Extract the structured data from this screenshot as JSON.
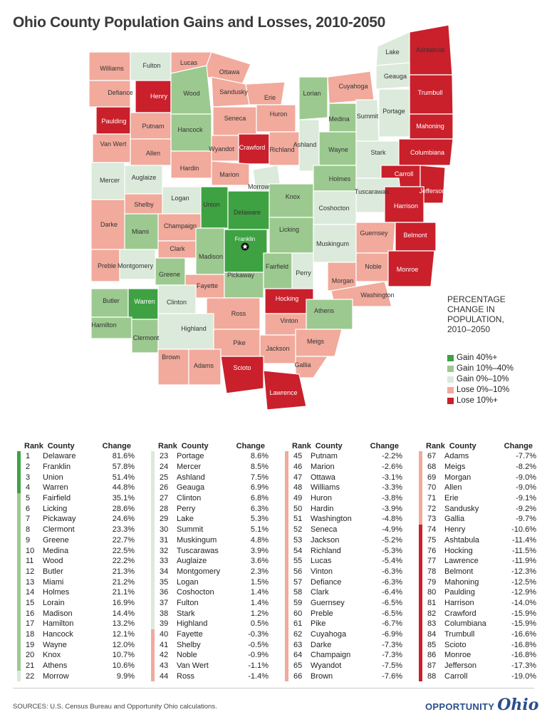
{
  "title": "Ohio County Population Gains and Losses, 2010-2050",
  "colors": {
    "gain40": "#3ea243",
    "gain10": "#9cc98f",
    "gain0": "#dbeadb",
    "lose0": "#f1aa9c",
    "lose10": "#c9202b",
    "border": "#ffffff"
  },
  "legend": {
    "title_lines": [
      "PERCENTAGE",
      "CHANGE IN",
      "POPULATION,",
      "2010–2050"
    ],
    "items": [
      {
        "label": "Gain 40%+",
        "cls": "gain40"
      },
      {
        "label": "Gain 10%–40%",
        "cls": "gain10"
      },
      {
        "label": "Gain 0%–10%",
        "cls": "gain0"
      },
      {
        "label": "Lose 0%–10%",
        "cls": "lose0"
      },
      {
        "label": "Lose 10%+",
        "cls": "lose10"
      }
    ]
  },
  "capital_icon": "star-icon",
  "map_counties": [
    {
      "name": "Williams",
      "cls": "lose0"
    },
    {
      "name": "Fulton",
      "cls": "gain0"
    },
    {
      "name": "Lucas",
      "cls": "lose0"
    },
    {
      "name": "Ottawa",
      "cls": "lose0"
    },
    {
      "name": "Lake",
      "cls": "gain0"
    },
    {
      "name": "Ashtabula",
      "cls": "lose10"
    },
    {
      "name": "Defiance",
      "cls": "lose0"
    },
    {
      "name": "Henry",
      "cls": "lose10"
    },
    {
      "name": "Wood",
      "cls": "gain10"
    },
    {
      "name": "Sandusky",
      "cls": "lose0"
    },
    {
      "name": "Erie",
      "cls": "lose0"
    },
    {
      "name": "Lorian",
      "cls": "gain10"
    },
    {
      "name": "Cuyahoga",
      "cls": "lose0"
    },
    {
      "name": "Geauga",
      "cls": "gain0"
    },
    {
      "name": "Trumbull",
      "cls": "lose10"
    },
    {
      "name": "Paulding",
      "cls": "lose10"
    },
    {
      "name": "Putnam",
      "cls": "lose0"
    },
    {
      "name": "Hancock",
      "cls": "gain10"
    },
    {
      "name": "Seneca",
      "cls": "lose0"
    },
    {
      "name": "Huron",
      "cls": "lose0"
    },
    {
      "name": "Medina",
      "cls": "gain10"
    },
    {
      "name": "Summit",
      "cls": "gain0"
    },
    {
      "name": "Portage",
      "cls": "gain0"
    },
    {
      "name": "Mahoning",
      "cls": "lose10"
    },
    {
      "name": "Van Wert",
      "cls": "lose0"
    },
    {
      "name": "Allen",
      "cls": "lose0"
    },
    {
      "name": "Wyandot",
      "cls": "lose0"
    },
    {
      "name": "Crawford",
      "cls": "lose10"
    },
    {
      "name": "Richland",
      "cls": "lose0"
    },
    {
      "name": "Ashland",
      "cls": "gain0"
    },
    {
      "name": "Wayne",
      "cls": "gain10"
    },
    {
      "name": "Stark",
      "cls": "gain0"
    },
    {
      "name": "Columbiana",
      "cls": "lose10"
    },
    {
      "name": "Mercer",
      "cls": "gain0"
    },
    {
      "name": "Auglaize",
      "cls": "gain0"
    },
    {
      "name": "Hardin",
      "cls": "lose0"
    },
    {
      "name": "Marion",
      "cls": "lose0"
    },
    {
      "name": "Morrow",
      "cls": "gain0"
    },
    {
      "name": "Holmes",
      "cls": "gain10"
    },
    {
      "name": "Carroll",
      "cls": "lose10"
    },
    {
      "name": "Tuscarawas",
      "cls": "gain0"
    },
    {
      "name": "Jefferson",
      "cls": "lose10"
    },
    {
      "name": "Shelby",
      "cls": "lose0"
    },
    {
      "name": "Logan",
      "cls": "gain0"
    },
    {
      "name": "Union",
      "cls": "gain40"
    },
    {
      "name": "Delaware",
      "cls": "gain40"
    },
    {
      "name": "Knox",
      "cls": "gain10"
    },
    {
      "name": "Coshocton",
      "cls": "gain0"
    },
    {
      "name": "Harrison",
      "cls": "lose10"
    },
    {
      "name": "Darke",
      "cls": "lose0"
    },
    {
      "name": "Miami",
      "cls": "gain10"
    },
    {
      "name": "Champaign",
      "cls": "lose0"
    },
    {
      "name": "Franklin",
      "cls": "gain40"
    },
    {
      "name": "Licking",
      "cls": "gain10"
    },
    {
      "name": "Muskingum",
      "cls": "gain0"
    },
    {
      "name": "Guernsey",
      "cls": "lose0"
    },
    {
      "name": "Belmont",
      "cls": "lose10"
    },
    {
      "name": "Clark",
      "cls": "lose0"
    },
    {
      "name": "Madison",
      "cls": "gain10"
    },
    {
      "name": "Preble",
      "cls": "lose0"
    },
    {
      "name": "Montgomery",
      "cls": "gain0"
    },
    {
      "name": "Greene",
      "cls": "gain10"
    },
    {
      "name": "Fayette",
      "cls": "lose0"
    },
    {
      "name": "Pickaway",
      "cls": "gain10"
    },
    {
      "name": "Fairfield",
      "cls": "gain10"
    },
    {
      "name": "Perry",
      "cls": "gain0"
    },
    {
      "name": "Morgan",
      "cls": "lose0"
    },
    {
      "name": "Noble",
      "cls": "lose0"
    },
    {
      "name": "Monroe",
      "cls": "lose10"
    },
    {
      "name": "Washington",
      "cls": "lose0"
    },
    {
      "name": "Butler",
      "cls": "gain10"
    },
    {
      "name": "Warren",
      "cls": "gain40"
    },
    {
      "name": "Clinton",
      "cls": "gain0"
    },
    {
      "name": "Ross",
      "cls": "lose0"
    },
    {
      "name": "Hocking",
      "cls": "lose10"
    },
    {
      "name": "Athens",
      "cls": "gain10"
    },
    {
      "name": "Vinton",
      "cls": "lose0"
    },
    {
      "name": "Hamilton",
      "cls": "gain10"
    },
    {
      "name": "Clermont",
      "cls": "gain10"
    },
    {
      "name": "Highland",
      "cls": "gain0"
    },
    {
      "name": "Pike",
      "cls": "lose0"
    },
    {
      "name": "Jackson",
      "cls": "lose0"
    },
    {
      "name": "Meigs",
      "cls": "lose0"
    },
    {
      "name": "Brown",
      "cls": "lose0"
    },
    {
      "name": "Adams",
      "cls": "lose0"
    },
    {
      "name": "Scioto",
      "cls": "lose10"
    },
    {
      "name": "Gallia",
      "cls": "lose0"
    },
    {
      "name": "Lawrence",
      "cls": "lose10"
    }
  ],
  "table": {
    "headers": {
      "rank": "Rank",
      "county": "County",
      "change": "Change"
    },
    "rows": [
      {
        "rank": "1",
        "county": "Delaware",
        "change": "81.6%",
        "cls": "gain40"
      },
      {
        "rank": "2",
        "county": "Franklin",
        "change": "57.8%",
        "cls": "gain40"
      },
      {
        "rank": "3",
        "county": "Union",
        "change": "51.4%",
        "cls": "gain40"
      },
      {
        "rank": "4",
        "county": "Warren",
        "change": "44.8%",
        "cls": "gain40"
      },
      {
        "rank": "5",
        "county": "Fairfield",
        "change": "35.1%",
        "cls": "gain10"
      },
      {
        "rank": "6",
        "county": "Licking",
        "change": "28.6%",
        "cls": "gain10"
      },
      {
        "rank": "7",
        "county": "Pickaway",
        "change": "24.6%",
        "cls": "gain10"
      },
      {
        "rank": "8",
        "county": "Clermont",
        "change": "23.3%",
        "cls": "gain10"
      },
      {
        "rank": "9",
        "county": "Greene",
        "change": "22.7%",
        "cls": "gain10"
      },
      {
        "rank": "10",
        "county": "Medina",
        "change": "22.5%",
        "cls": "gain10"
      },
      {
        "rank": "11",
        "county": "Wood",
        "change": "22.2%",
        "cls": "gain10"
      },
      {
        "rank": "12",
        "county": "Butler",
        "change": "21.3%",
        "cls": "gain10"
      },
      {
        "rank": "13",
        "county": "Miami",
        "change": "21.2%",
        "cls": "gain10"
      },
      {
        "rank": "14",
        "county": "Holmes",
        "change": "21.1%",
        "cls": "gain10"
      },
      {
        "rank": "15",
        "county": "Lorain",
        "change": "16.9%",
        "cls": "gain10"
      },
      {
        "rank": "16",
        "county": "Madison",
        "change": "14.4%",
        "cls": "gain10"
      },
      {
        "rank": "17",
        "county": "Hamilton",
        "change": "13.2%",
        "cls": "gain10"
      },
      {
        "rank": "18",
        "county": "Hancock",
        "change": "12.1%",
        "cls": "gain10"
      },
      {
        "rank": "19",
        "county": "Wayne",
        "change": "12.0%",
        "cls": "gain10"
      },
      {
        "rank": "20",
        "county": "Knox",
        "change": "10.7%",
        "cls": "gain10"
      },
      {
        "rank": "21",
        "county": "Athens",
        "change": "10.6%",
        "cls": "gain10"
      },
      {
        "rank": "22",
        "county": "Morrow",
        "change": "9.9%",
        "cls": "gain0"
      },
      {
        "rank": "23",
        "county": "Portage",
        "change": "8.6%",
        "cls": "gain0"
      },
      {
        "rank": "24",
        "county": "Mercer",
        "change": "8.5%",
        "cls": "gain0"
      },
      {
        "rank": "25",
        "county": "Ashland",
        "change": "7.5%",
        "cls": "gain0"
      },
      {
        "rank": "26",
        "county": "Geauga",
        "change": "6.9%",
        "cls": "gain0"
      },
      {
        "rank": "27",
        "county": "Clinton",
        "change": "6.8%",
        "cls": "gain0"
      },
      {
        "rank": "28",
        "county": "Perry",
        "change": "6.3%",
        "cls": "gain0"
      },
      {
        "rank": "29",
        "county": "Lake",
        "change": "5.3%",
        "cls": "gain0"
      },
      {
        "rank": "30",
        "county": "Summit",
        "change": "5.1%",
        "cls": "gain0"
      },
      {
        "rank": "31",
        "county": "Muskingum",
        "change": "4.8%",
        "cls": "gain0"
      },
      {
        "rank": "32",
        "county": "Tuscarawas",
        "change": "3.9%",
        "cls": "gain0"
      },
      {
        "rank": "33",
        "county": "Auglaize",
        "change": "3.6%",
        "cls": "gain0"
      },
      {
        "rank": "34",
        "county": "Montgomery",
        "change": "2.3%",
        "cls": "gain0"
      },
      {
        "rank": "35",
        "county": "Logan",
        "change": "1.5%",
        "cls": "gain0"
      },
      {
        "rank": "36",
        "county": "Coshocton",
        "change": "1.4%",
        "cls": "gain0"
      },
      {
        "rank": "37",
        "county": "Fulton",
        "change": "1.4%",
        "cls": "gain0"
      },
      {
        "rank": "38",
        "county": "Stark",
        "change": "1.2%",
        "cls": "gain0"
      },
      {
        "rank": "39",
        "county": "Highland",
        "change": "0.5%",
        "cls": "gain0"
      },
      {
        "rank": "40",
        "county": "Fayette",
        "change": "-0.3%",
        "cls": "lose0"
      },
      {
        "rank": "41",
        "county": "Shelby",
        "change": "-0.5%",
        "cls": "lose0"
      },
      {
        "rank": "42",
        "county": "Noble",
        "change": "-0.9%",
        "cls": "lose0"
      },
      {
        "rank": "43",
        "county": "Van Wert",
        "change": "-1.1%",
        "cls": "lose0"
      },
      {
        "rank": "44",
        "county": "Ross",
        "change": "-1.4%",
        "cls": "lose0"
      },
      {
        "rank": "45",
        "county": "Putnam",
        "change": "-2.2%",
        "cls": "lose0"
      },
      {
        "rank": "46",
        "county": "Marion",
        "change": "-2.6%",
        "cls": "lose0"
      },
      {
        "rank": "47",
        "county": "Ottawa",
        "change": "-3.1%",
        "cls": "lose0"
      },
      {
        "rank": "48",
        "county": "Williams",
        "change": "-3.3%",
        "cls": "lose0"
      },
      {
        "rank": "49",
        "county": "Huron",
        "change": "-3.8%",
        "cls": "lose0"
      },
      {
        "rank": "50",
        "county": "Hardin",
        "change": "-3.9%",
        "cls": "lose0"
      },
      {
        "rank": "51",
        "county": "Washington",
        "change": "-4.8%",
        "cls": "lose0"
      },
      {
        "rank": "52",
        "county": "Seneca",
        "change": "-4.9%",
        "cls": "lose0"
      },
      {
        "rank": "53",
        "county": "Jackson",
        "change": "-5.2%",
        "cls": "lose0"
      },
      {
        "rank": "54",
        "county": "Richland",
        "change": "-5.3%",
        "cls": "lose0"
      },
      {
        "rank": "55",
        "county": "Lucas",
        "change": "-5.4%",
        "cls": "lose0"
      },
      {
        "rank": "56",
        "county": "Vinton",
        "change": "-6.3%",
        "cls": "lose0"
      },
      {
        "rank": "57",
        "county": "Defiance",
        "change": "-6.3%",
        "cls": "lose0"
      },
      {
        "rank": "58",
        "county": "Clark",
        "change": "-6.4%",
        "cls": "lose0"
      },
      {
        "rank": "59",
        "county": "Guernsey",
        "change": "-6.5%",
        "cls": "lose0"
      },
      {
        "rank": "60",
        "county": "Preble",
        "change": "-6.5%",
        "cls": "lose0"
      },
      {
        "rank": "61",
        "county": "Pike",
        "change": "-6.7%",
        "cls": "lose0"
      },
      {
        "rank": "62",
        "county": "Cuyahoga",
        "change": "-6.9%",
        "cls": "lose0"
      },
      {
        "rank": "63",
        "county": "Darke",
        "change": "-7.3%",
        "cls": "lose0"
      },
      {
        "rank": "64",
        "county": "Champaign",
        "change": "-7.3%",
        "cls": "lose0"
      },
      {
        "rank": "65",
        "county": "Wyandot",
        "change": "-7.5%",
        "cls": "lose0"
      },
      {
        "rank": "66",
        "county": "Brown",
        "change": "-7.6%",
        "cls": "lose0"
      },
      {
        "rank": "67",
        "county": "Adams",
        "change": "-7.7%",
        "cls": "lose0"
      },
      {
        "rank": "68",
        "county": "Meigs",
        "change": "-8.2%",
        "cls": "lose0"
      },
      {
        "rank": "69",
        "county": "Morgan",
        "change": "-9.0%",
        "cls": "lose0"
      },
      {
        "rank": "70",
        "county": "Allen",
        "change": "-9.0%",
        "cls": "lose0"
      },
      {
        "rank": "71",
        "county": "Erie",
        "change": "-9.1%",
        "cls": "lose0"
      },
      {
        "rank": "72",
        "county": "Sandusky",
        "change": "-9.2%",
        "cls": "lose0"
      },
      {
        "rank": "73",
        "county": "Gallia",
        "change": "-9.7%",
        "cls": "lose0"
      },
      {
        "rank": "74",
        "county": "Henry",
        "change": "-10.6%",
        "cls": "lose10"
      },
      {
        "rank": "75",
        "county": "Ashtabula",
        "change": "-11.4%",
        "cls": "lose10"
      },
      {
        "rank": "76",
        "county": "Hocking",
        "change": "-11.5%",
        "cls": "lose10"
      },
      {
        "rank": "77",
        "county": "Lawrence",
        "change": "-11.9%",
        "cls": "lose10"
      },
      {
        "rank": "78",
        "county": "Belmont",
        "change": "-12.3%",
        "cls": "lose10"
      },
      {
        "rank": "79",
        "county": "Mahoning",
        "change": "-12.5%",
        "cls": "lose10"
      },
      {
        "rank": "80",
        "county": "Paulding",
        "change": "-12.9%",
        "cls": "lose10"
      },
      {
        "rank": "81",
        "county": "Harrison",
        "change": "-14.0%",
        "cls": "lose10"
      },
      {
        "rank": "82",
        "county": "Crawford",
        "change": "-15.9%",
        "cls": "lose10"
      },
      {
        "rank": "83",
        "county": "Columbiana",
        "change": "-15.9%",
        "cls": "lose10"
      },
      {
        "rank": "84",
        "county": "Trumbull",
        "change": "-16.6%",
        "cls": "lose10"
      },
      {
        "rank": "85",
        "county": "Scioto",
        "change": "-16.8%",
        "cls": "lose10"
      },
      {
        "rank": "86",
        "county": "Monroe",
        "change": "-16.8%",
        "cls": "lose10"
      },
      {
        "rank": "87",
        "county": "Jefferson",
        "change": "-17.3%",
        "cls": "lose10"
      },
      {
        "rank": "88",
        "county": "Carroll",
        "change": "-19.0%",
        "cls": "lose10"
      }
    ]
  },
  "footer": {
    "source": "SOURCES: U.S. Census Bureau and Opportunity Ohio calculations.",
    "logo_word": "OPPORTUNITY",
    "logo_script": "Ohio"
  }
}
